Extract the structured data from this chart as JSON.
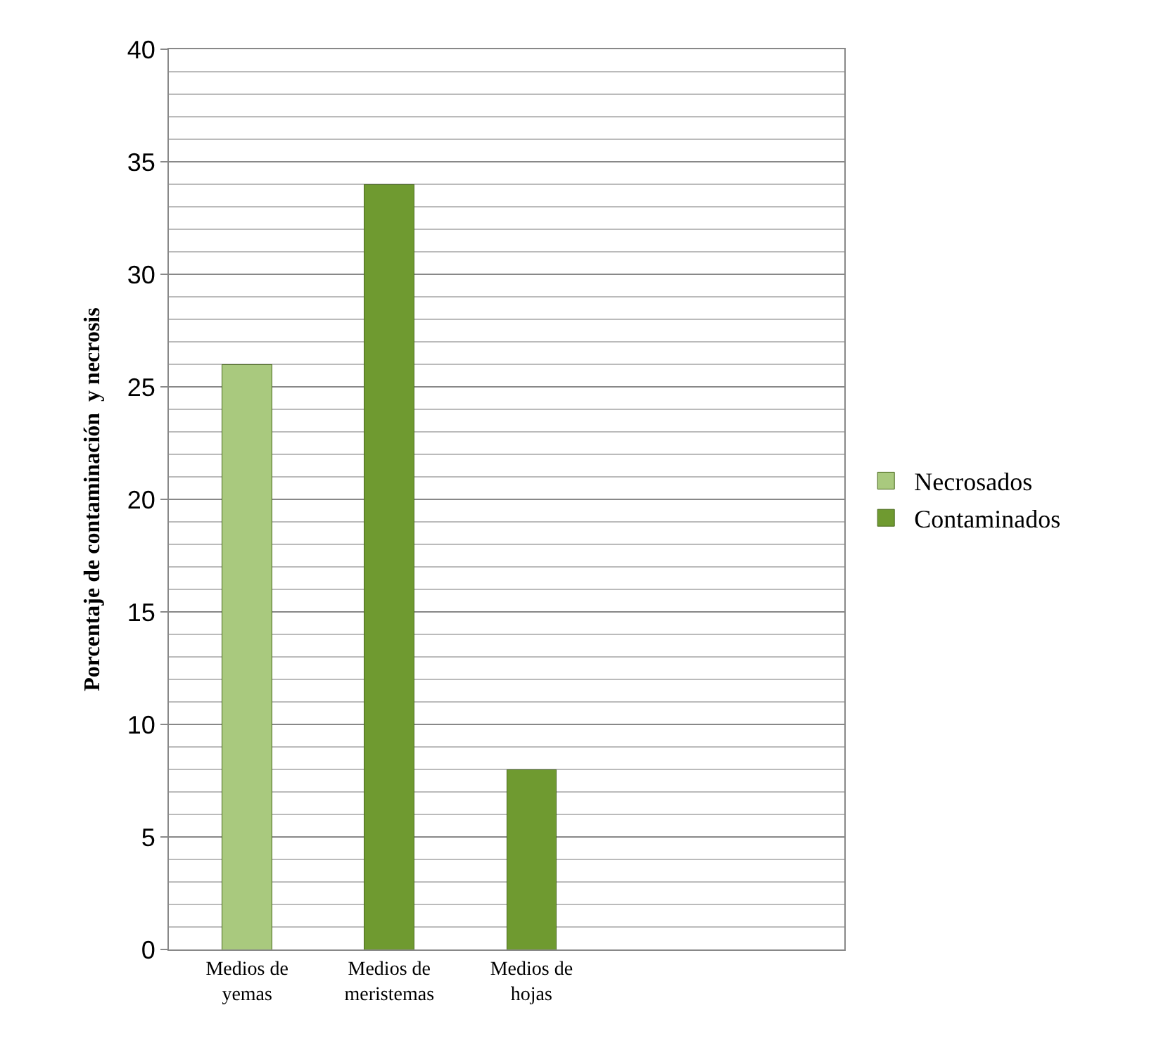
{
  "chart_data": {
    "type": "bar",
    "stacked": true,
    "ylabel": "Porcentaje de contaminación  y necrosis",
    "categories": [
      "Medios de\nyemas",
      "Medios de\nmeristemas",
      "Medios de\nhojas"
    ],
    "series": [
      {
        "name": "Contaminados",
        "color": "#6f9a30",
        "values": [
          null,
          34,
          8
        ]
      },
      {
        "name": "Necrosados",
        "color": "#a9c97e",
        "values": [
          26,
          null,
          null
        ]
      }
    ],
    "ylim": [
      0,
      40
    ],
    "yticks": [
      0,
      5,
      10,
      15,
      20,
      25,
      30,
      35,
      40
    ],
    "grid": "y",
    "legend": "right"
  }
}
